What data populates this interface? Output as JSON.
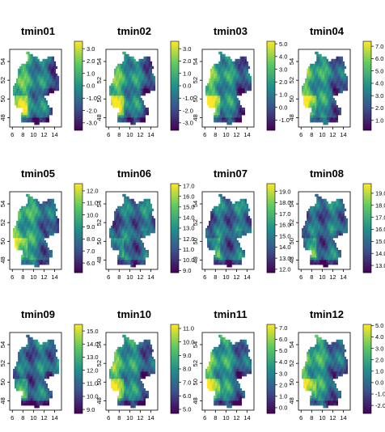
{
  "chart_data": {
    "type": "heatmap",
    "colormap": [
      "#440154",
      "#3b528b",
      "#21918c",
      "#5ec962",
      "#fde725"
    ],
    "x_ticks": [
      "6",
      "8",
      "10",
      "12",
      "14"
    ],
    "y_ticks": [
      "48",
      "50",
      "52",
      "54"
    ],
    "xlim": [
      5.5,
      15.3
    ],
    "ylim": [
      47,
      55.3
    ],
    "panels": [
      {
        "title": "tmin01",
        "legend_ticks": [
          "3.0",
          "2.0",
          "1.0",
          "0.0",
          "-1.0",
          "-2.0",
          "-3.0"
        ],
        "range": [
          -3.6,
          3.6
        ],
        "gradient": "west-east"
      },
      {
        "title": "tmin02",
        "legend_ticks": [
          "3.0",
          "2.0",
          "1.0",
          "0.0",
          "-1.0",
          "-2.0",
          "-3.0"
        ],
        "range": [
          -3.6,
          3.6
        ],
        "gradient": "west-east"
      },
      {
        "title": "tmin03",
        "legend_ticks": [
          "5.0",
          "4.0",
          "3.0",
          "2.0",
          "1.0",
          "0.0",
          "-1.0"
        ],
        "range": [
          -1.8,
          5.2
        ],
        "gradient": "west-east"
      },
      {
        "title": "tmin04",
        "legend_ticks": [
          "7.0",
          "6.0",
          "5.0",
          "4.0",
          "3.0",
          "2.0",
          "1.0"
        ],
        "range": [
          0.2,
          7.4
        ],
        "gradient": "west-east"
      },
      {
        "title": "tmin05",
        "legend_ticks": [
          "12.0",
          "11.0",
          "10.0",
          "9.0",
          "8.0",
          "7.0",
          "6.0"
        ],
        "range": [
          5.2,
          12.6
        ],
        "gradient": "west-east"
      },
      {
        "title": "tmin06",
        "legend_ticks": [
          "17.0",
          "16.0",
          "15.0",
          "14.0",
          "13.0",
          "12.0",
          "11.0",
          "10.0",
          "9.0"
        ],
        "range": [
          8.8,
          17.2
        ],
        "gradient": "north-south"
      },
      {
        "title": "tmin07",
        "legend_ticks": [
          "19.0",
          "18.0",
          "17.0",
          "16.0",
          "15.0",
          "14.0",
          "13.0",
          "12.0"
        ],
        "range": [
          11.7,
          19.7
        ],
        "gradient": "north-south"
      },
      {
        "title": "tmin08",
        "legend_ticks": [
          "19.0",
          "18.0",
          "17.0",
          "16.0",
          "15.0",
          "14.0",
          "13.0"
        ],
        "range": [
          12.4,
          19.8
        ],
        "gradient": "north-south"
      },
      {
        "title": "tmin09",
        "legend_ticks": [
          "15.0",
          "14.0",
          "13.0",
          "12.0",
          "11.0",
          "10.0",
          "9.0"
        ],
        "range": [
          8.7,
          15.5
        ],
        "gradient": "north-south"
      },
      {
        "title": "tmin10",
        "legend_ticks": [
          "11.0",
          "10.0",
          "9.0",
          "8.0",
          "7.0",
          "6.0",
          "5.0"
        ],
        "range": [
          4.7,
          11.3
        ],
        "gradient": "west-east"
      },
      {
        "title": "tmin11",
        "legend_ticks": [
          "7.0",
          "6.0",
          "5.0",
          "4.0",
          "3.0",
          "2.0",
          "1.0",
          "0.0"
        ],
        "range": [
          -0.5,
          7.3
        ],
        "gradient": "west-east"
      },
      {
        "title": "tmin12",
        "legend_ticks": [
          "5.0",
          "4.0",
          "3.0",
          "2.0",
          "1.0",
          "0.0",
          "-1.0",
          "-2.0"
        ],
        "range": [
          -2.7,
          5.1
        ],
        "gradient": "west-east"
      }
    ]
  }
}
